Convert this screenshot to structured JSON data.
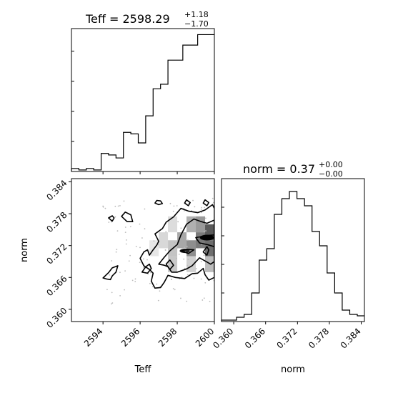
{
  "chart_data": [
    {
      "type": "histogram",
      "panel": "top-left",
      "title": {
        "name": "Teff",
        "value": "2598.29",
        "plus": "+1.18",
        "minus": "−1.70"
      },
      "xlim": [
        2592.3,
        2600.0
      ],
      "bin_edges": [
        2592.3,
        2592.7,
        2593.1,
        2593.5,
        2593.9,
        2594.3,
        2594.7,
        2595.1,
        2595.5,
        2595.9,
        2596.3,
        2596.7,
        2597.1,
        2597.5,
        2597.9,
        2598.3,
        2598.7,
        2599.1,
        2599.5,
        2600.0
      ],
      "counts": [
        2,
        1,
        2,
        1,
        12,
        11,
        9,
        26,
        25,
        19,
        37,
        55,
        58,
        74,
        74,
        84,
        84,
        91,
        91
      ],
      "ylim": [
        0,
        95
      ],
      "show_xtick_labels": false
    },
    {
      "type": "histogram",
      "panel": "bottom-right",
      "title": {
        "name": "norm",
        "value": "0.37",
        "plus": "+0.00",
        "minus": "−0.00"
      },
      "xlabel": "norm",
      "xlim": [
        0.3577,
        0.3846
      ],
      "xticks": [
        "0.360",
        "0.366",
        "0.372",
        "0.378",
        "0.384"
      ],
      "xtick_values": [
        0.36,
        0.366,
        0.372,
        0.378,
        0.384
      ],
      "bin_edges": [
        0.3577,
        0.35912,
        0.36054,
        0.36196,
        0.36338,
        0.3648,
        0.36622,
        0.36764,
        0.36906,
        0.37048,
        0.3719,
        0.37332,
        0.37474,
        0.37616,
        0.37758,
        0.379,
        0.38042,
        0.38184,
        0.38326,
        0.3846
      ],
      "counts": [
        1,
        1,
        3,
        5,
        20,
        43,
        51,
        75,
        86,
        91,
        86,
        81,
        63,
        53,
        34,
        20,
        8,
        5,
        4
      ],
      "ylim": [
        0,
        100
      ]
    },
    {
      "type": "contour",
      "panel": "bottom-left",
      "xlabel": "Teff",
      "ylabel": "norm",
      "xlim": [
        2592.3,
        2600.0
      ],
      "ylim": [
        0.3577,
        0.3846
      ],
      "xticks": [
        "2594",
        "2596",
        "2598",
        "2600"
      ],
      "xtick_values": [
        2594,
        2596,
        2598,
        2600
      ],
      "yticks": [
        "0.384",
        "0.378",
        "0.372",
        "0.366",
        "0.360"
      ],
      "ytick_values": [
        0.384,
        0.378,
        0.372,
        0.366,
        0.36
      ],
      "contours": [
        [
          [
            2595.0,
            0.3775
          ],
          [
            2595.3,
            0.3765
          ],
          [
            2595.6,
            0.3765
          ],
          [
            2595.5,
            0.3778
          ],
          [
            2595.2,
            0.3783
          ]
        ],
        [
          [
            2594.3,
            0.3772
          ],
          [
            2594.5,
            0.3766
          ],
          [
            2594.6,
            0.3772
          ],
          [
            2594.5,
            0.3776
          ]
        ],
        [
          [
            2596.8,
            0.38
          ],
          [
            2597.0,
            0.3797
          ],
          [
            2597.2,
            0.3799
          ],
          [
            2597.1,
            0.3804
          ],
          [
            2596.9,
            0.3805
          ]
        ],
        [
          [
            2598.4,
            0.38
          ],
          [
            2598.6,
            0.3795
          ],
          [
            2598.7,
            0.3801
          ],
          [
            2598.5,
            0.3806
          ]
        ],
        [
          [
            2599.4,
            0.38
          ],
          [
            2599.6,
            0.3795
          ],
          [
            2599.7,
            0.3801
          ],
          [
            2599.5,
            0.3806
          ]
        ],
        [
          [
            2594.0,
            0.3659
          ],
          [
            2594.3,
            0.3669
          ],
          [
            2594.5,
            0.3678
          ],
          [
            2594.8,
            0.3682
          ],
          [
            2594.7,
            0.367
          ],
          [
            2594.5,
            0.3663
          ],
          [
            2594.4,
            0.3656
          ],
          [
            2594.2,
            0.3657
          ]
        ],
        [
          [
            2596.1,
            0.367
          ],
          [
            2596.3,
            0.368
          ],
          [
            2596.5,
            0.3685
          ],
          [
            2596.6,
            0.3677
          ],
          [
            2596.4,
            0.3668
          ]
        ],
        [
          [
            2596.5,
            0.3702
          ],
          [
            2596.7,
            0.3712
          ],
          [
            2596.9,
            0.3721
          ],
          [
            2597.0,
            0.3728
          ],
          [
            2596.8,
            0.3742
          ],
          [
            2597.2,
            0.3752
          ],
          [
            2597.4,
            0.3764
          ],
          [
            2597.8,
            0.3774
          ],
          [
            2598.2,
            0.379
          ],
          [
            2598.6,
            0.3785
          ],
          [
            2599.1,
            0.3782
          ],
          [
            2599.5,
            0.3787
          ],
          [
            2599.9,
            0.3797
          ],
          [
            2600.0,
            0.379
          ],
          [
            2600.0,
            0.366
          ],
          [
            2599.7,
            0.3655
          ],
          [
            2599.5,
            0.3665
          ],
          [
            2599.4,
            0.3677
          ],
          [
            2599.1,
            0.3668
          ],
          [
            2598.8,
            0.3667
          ],
          [
            2598.4,
            0.3658
          ],
          [
            2597.9,
            0.366
          ],
          [
            2597.5,
            0.3664
          ],
          [
            2597.3,
            0.3651
          ],
          [
            2597.1,
            0.3641
          ],
          [
            2596.8,
            0.364
          ],
          [
            2596.6,
            0.3653
          ],
          [
            2596.7,
            0.3668
          ],
          [
            2596.5,
            0.3675
          ],
          [
            2596.2,
            0.3682
          ],
          [
            2596.0,
            0.3696
          ],
          [
            2596.2,
            0.3708
          ],
          [
            2596.4,
            0.3712
          ]
        ],
        [
          [
            2597.0,
            0.3685
          ],
          [
            2597.3,
            0.3698
          ],
          [
            2597.6,
            0.371
          ],
          [
            2598.0,
            0.3722
          ],
          [
            2598.2,
            0.374
          ],
          [
            2598.5,
            0.376
          ],
          [
            2598.9,
            0.377
          ],
          [
            2599.3,
            0.3765
          ],
          [
            2599.6,
            0.3762
          ],
          [
            2600.0,
            0.3768
          ],
          [
            2600.0,
            0.369
          ],
          [
            2599.8,
            0.3685
          ],
          [
            2599.5,
            0.3691
          ],
          [
            2599.2,
            0.3697
          ],
          [
            2598.8,
            0.3682
          ],
          [
            2598.5,
            0.3676
          ],
          [
            2598.0,
            0.367
          ],
          [
            2597.7,
            0.367
          ],
          [
            2597.5,
            0.368
          ],
          [
            2597.3,
            0.3683
          ]
        ],
        [
          [
            2597.4,
            0.3685
          ],
          [
            2597.6,
            0.3693
          ],
          [
            2597.8,
            0.3683
          ],
          [
            2597.6,
            0.3675
          ]
        ],
        [
          [
            2598.2,
            0.371
          ],
          [
            2598.5,
            0.3713
          ],
          [
            2598.9,
            0.3712
          ],
          [
            2598.6,
            0.3705
          ]
        ],
        [
          [
            2599.0,
            0.3735
          ],
          [
            2599.6,
            0.3739
          ],
          [
            2600.0,
            0.374
          ],
          [
            2600.0,
            0.3718
          ],
          [
            2599.6,
            0.3722
          ],
          [
            2599.2,
            0.3725
          ]
        ],
        [
          [
            2599.4,
            0.3708
          ],
          [
            2599.6,
            0.3718
          ],
          [
            2599.7,
            0.3712
          ],
          [
            2599.6,
            0.3702
          ]
        ]
      ]
    }
  ]
}
